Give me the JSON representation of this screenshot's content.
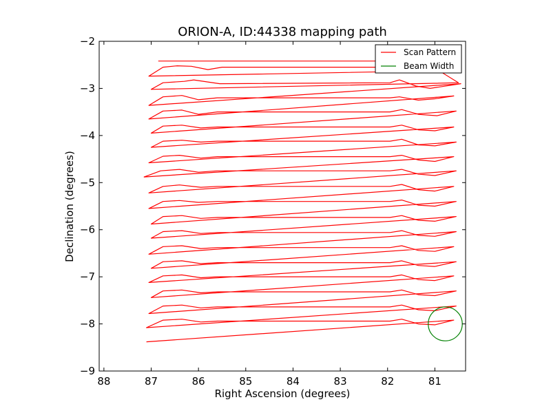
{
  "chart_data": {
    "type": "line",
    "title": "ORION-A, ID:44338 mapping path",
    "xlabel": "Right Ascension (degrees)",
    "ylabel": "Declination (degrees)",
    "xlim": [
      88.1,
      80.35
    ],
    "ylim": [
      -9,
      -2
    ],
    "xticks": [
      88,
      87,
      86,
      85,
      84,
      83,
      82,
      81
    ],
    "xtick_labels": [
      "88",
      "87",
      "86",
      "85",
      "84",
      "83",
      "82",
      "81"
    ],
    "yticks": [
      -2,
      -3,
      -4,
      -5,
      -6,
      -7,
      -8,
      -9
    ],
    "ytick_labels": [
      "−2",
      "−3",
      "−4",
      "−5",
      "−6",
      "−7",
      "−8",
      "−9"
    ],
    "grid": false,
    "legend_position": "top-right",
    "series": [
      {
        "name": "Scan Pattern",
        "color": "#ff0000",
        "x": [
          86.85,
          81.95,
          81.7,
          81.4,
          81.1,
          80.6,
          87.05,
          86.75,
          86.45,
          86.15,
          85.8,
          85.5,
          81.9,
          81.65,
          81.35,
          80.95,
          80.5,
          87.0,
          86.75,
          86.3,
          86.1,
          85.55,
          81.95,
          81.75,
          81.4,
          81.1,
          80.45,
          87.05,
          86.75,
          86.35,
          86.0,
          85.6,
          81.95,
          81.75,
          81.35,
          81.0,
          80.6,
          87.05,
          86.75,
          86.35,
          86.0,
          85.6,
          81.95,
          81.7,
          81.35,
          80.95,
          80.55,
          87.0,
          86.75,
          86.35,
          85.95,
          85.6,
          81.95,
          81.7,
          81.35,
          81.0,
          80.6,
          87.0,
          86.75,
          86.35,
          85.95,
          85.6,
          81.95,
          81.7,
          81.35,
          81.0,
          80.55,
          87.05,
          86.75,
          86.4,
          85.95,
          85.6,
          81.95,
          81.7,
          81.35,
          81.0,
          80.6,
          87.15,
          86.8,
          86.4,
          86.0,
          85.6,
          81.95,
          81.7,
          81.35,
          81.0,
          80.55,
          87.05,
          86.75,
          86.4,
          85.95,
          85.6,
          81.95,
          81.7,
          81.35,
          81.0,
          80.6,
          87.05,
          86.75,
          86.4,
          86.0,
          85.6,
          81.95,
          81.7,
          81.35,
          81.0,
          80.55,
          87.0,
          86.75,
          86.35,
          85.95,
          85.6,
          81.95,
          81.7,
          81.35,
          81.0,
          80.55,
          87.0,
          86.75,
          86.35,
          85.95,
          85.6,
          81.95,
          81.7,
          81.35,
          81.0,
          80.55,
          87.05,
          86.75,
          86.35,
          85.95,
          85.6,
          81.95,
          81.7,
          81.35,
          81.0,
          80.6,
          87.0,
          86.75,
          86.35,
          85.95,
          85.6,
          81.95,
          81.7,
          81.35,
          81.0,
          80.55,
          87.05,
          86.75,
          86.35,
          85.95,
          85.6,
          81.95,
          81.7,
          81.35,
          81.0,
          80.6,
          87.0,
          86.75,
          86.35,
          85.95,
          85.6,
          81.95,
          81.7,
          81.35,
          81.0,
          80.55,
          87.05,
          86.75,
          86.35,
          85.95,
          85.6,
          81.95,
          81.7,
          81.35,
          81.0,
          80.55,
          87.1,
          86.75,
          86.35,
          85.95,
          85.6,
          81.95,
          81.7,
          81.35,
          81.0,
          80.6,
          87.1
        ],
        "y": [
          -2.42,
          -2.42,
          -2.38,
          -2.52,
          -2.55,
          -2.62,
          -2.74,
          -2.55,
          -2.52,
          -2.53,
          -2.6,
          -2.55,
          -2.55,
          -2.6,
          -2.65,
          -2.6,
          -2.88,
          -3.02,
          -2.88,
          -2.85,
          -2.82,
          -2.9,
          -2.88,
          -2.82,
          -2.95,
          -3.0,
          -2.9,
          -3.36,
          -3.18,
          -3.15,
          -3.24,
          -3.2,
          -3.2,
          -3.18,
          -3.25,
          -3.22,
          -3.16,
          -3.65,
          -3.48,
          -3.46,
          -3.55,
          -3.5,
          -3.5,
          -3.45,
          -3.55,
          -3.58,
          -3.48,
          -3.95,
          -3.8,
          -3.78,
          -3.84,
          -3.82,
          -3.82,
          -3.78,
          -3.88,
          -3.9,
          -3.82,
          -4.25,
          -4.12,
          -4.1,
          -4.14,
          -4.12,
          -4.12,
          -4.08,
          -4.2,
          -4.22,
          -4.14,
          -4.58,
          -4.44,
          -4.42,
          -4.48,
          -4.45,
          -4.45,
          -4.42,
          -4.52,
          -4.55,
          -4.45,
          -4.88,
          -4.75,
          -4.72,
          -4.78,
          -4.75,
          -4.75,
          -4.72,
          -4.82,
          -4.85,
          -4.75,
          -5.22,
          -5.08,
          -5.05,
          -5.1,
          -5.08,
          -5.08,
          -5.04,
          -5.15,
          -5.18,
          -5.08,
          -5.55,
          -5.4,
          -5.38,
          -5.42,
          -5.4,
          -5.4,
          -5.37,
          -5.48,
          -5.5,
          -5.4,
          -5.88,
          -5.72,
          -5.7,
          -5.76,
          -5.74,
          -5.74,
          -5.7,
          -5.8,
          -5.82,
          -5.72,
          -6.18,
          -6.04,
          -6.02,
          -6.08,
          -6.06,
          -6.06,
          -6.02,
          -6.12,
          -6.14,
          -6.04,
          -6.52,
          -6.36,
          -6.34,
          -6.4,
          -6.38,
          -6.38,
          -6.34,
          -6.44,
          -6.46,
          -6.36,
          -6.82,
          -6.68,
          -6.66,
          -6.72,
          -6.7,
          -6.7,
          -6.66,
          -6.76,
          -6.78,
          -6.68,
          -7.12,
          -6.98,
          -6.96,
          -7.02,
          -7.0,
          -7.0,
          -6.96,
          -7.06,
          -7.08,
          -6.98,
          -7.44,
          -7.3,
          -7.28,
          -7.34,
          -7.32,
          -7.32,
          -7.28,
          -7.38,
          -7.4,
          -7.3,
          -7.78,
          -7.62,
          -7.6,
          -7.66,
          -7.64,
          -7.64,
          -7.6,
          -7.7,
          -7.72,
          -7.62,
          -8.08,
          -7.92,
          -7.9,
          -7.96,
          -7.94,
          -7.94,
          -7.9,
          -8.0,
          -8.02,
          -7.92,
          -8.38
        ]
      },
      {
        "name": "Beam Width",
        "color": "#008000",
        "center": [
          80.78,
          -8.0
        ],
        "radius_deg": 0.36
      }
    ]
  }
}
